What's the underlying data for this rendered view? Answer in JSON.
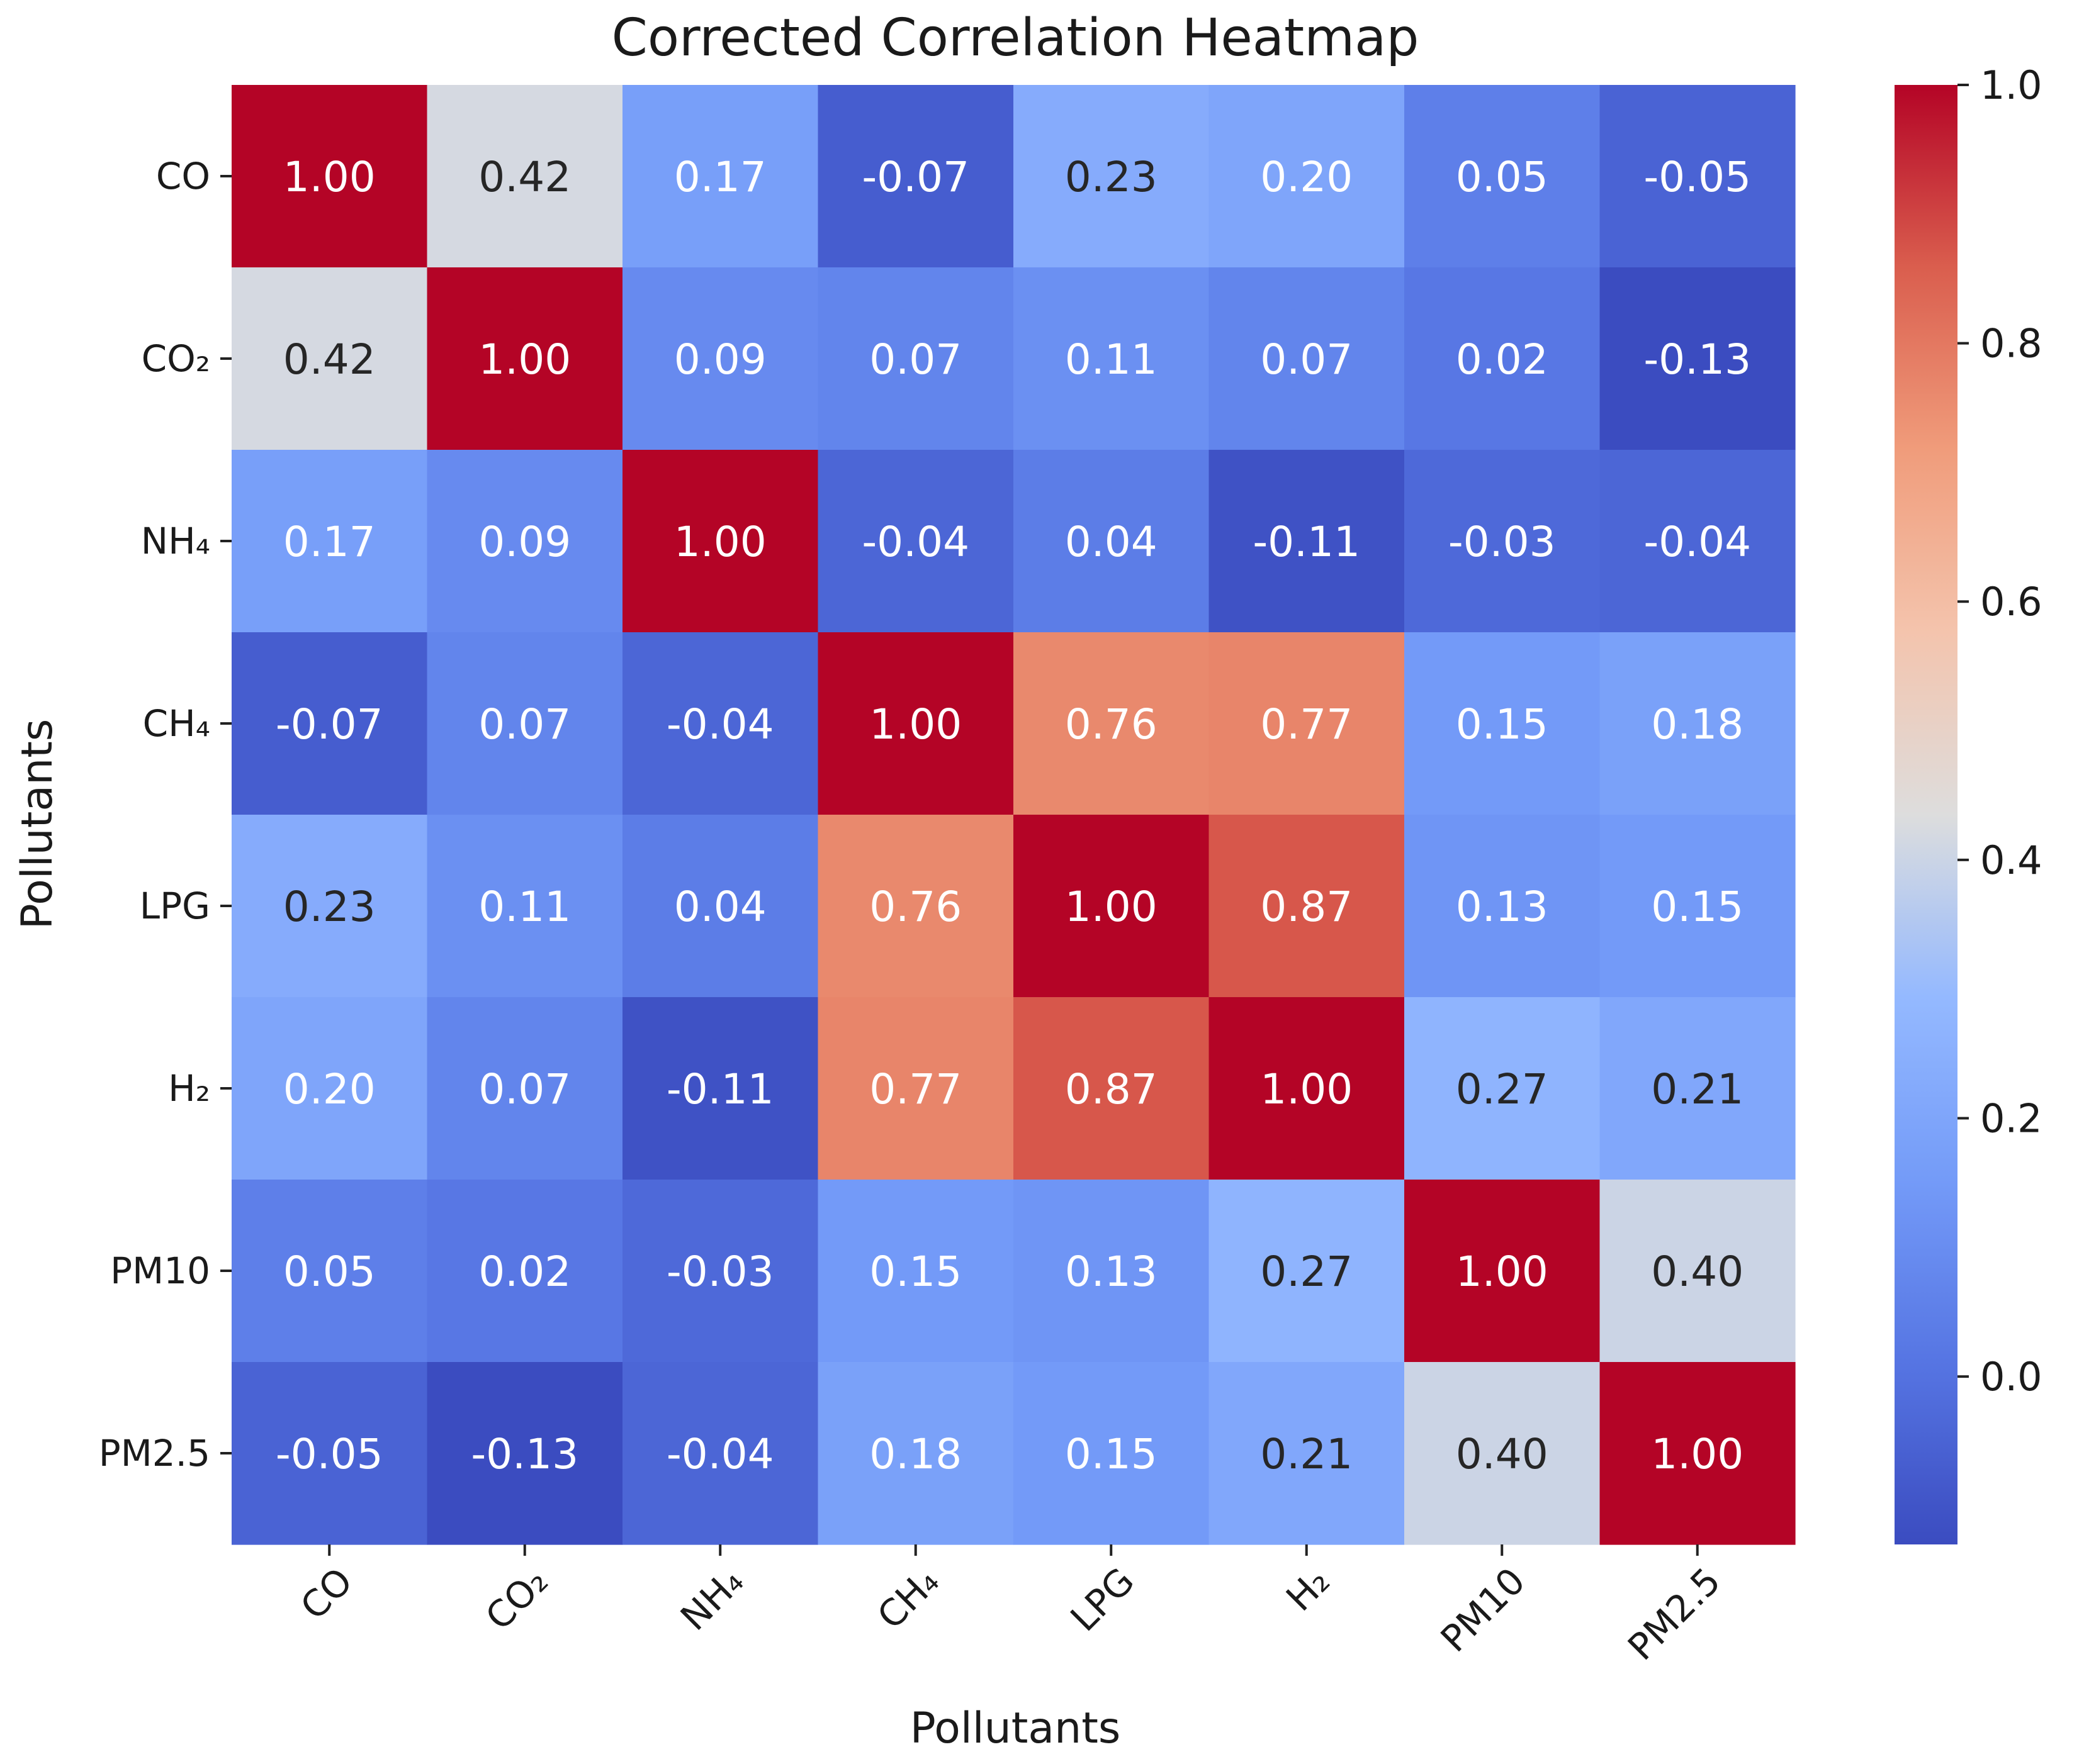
{
  "chart_data": {
    "type": "heatmap",
    "title": "Corrected Correlation Heatmap",
    "xlabel": "Pollutants",
    "ylabel": "Pollutants",
    "labels": [
      "CO",
      "CO₂",
      "NH₄",
      "CH₄",
      "LPG",
      "H₂",
      "PM10",
      "PM2.5"
    ],
    "values": [
      [
        1.0,
        0.42,
        0.17,
        -0.07,
        0.23,
        0.2,
        0.05,
        -0.05
      ],
      [
        0.42,
        1.0,
        0.09,
        0.07,
        0.11,
        0.07,
        0.02,
        -0.13
      ],
      [
        0.17,
        0.09,
        1.0,
        -0.04,
        0.04,
        -0.11,
        -0.03,
        -0.04
      ],
      [
        -0.07,
        0.07,
        -0.04,
        1.0,
        0.76,
        0.77,
        0.15,
        0.18
      ],
      [
        0.23,
        0.11,
        0.04,
        0.76,
        1.0,
        0.87,
        0.13,
        0.15
      ],
      [
        0.2,
        0.07,
        -0.11,
        0.77,
        0.87,
        1.0,
        0.27,
        0.21
      ],
      [
        0.05,
        0.02,
        -0.03,
        0.15,
        0.13,
        0.27,
        1.0,
        0.4
      ],
      [
        -0.05,
        -0.13,
        -0.04,
        0.18,
        0.15,
        0.21,
        0.4,
        1.0
      ]
    ],
    "value_format": "2dp",
    "colormap": "coolwarm",
    "vmin": -0.13,
    "vmax": 1.0,
    "colorbar_ticks": [
      "0.0",
      "0.2",
      "0.4",
      "0.6",
      "0.8",
      "1.0"
    ],
    "colorbar_tick_values": [
      0.0,
      0.2,
      0.4,
      0.6,
      0.8,
      1.0
    ]
  }
}
